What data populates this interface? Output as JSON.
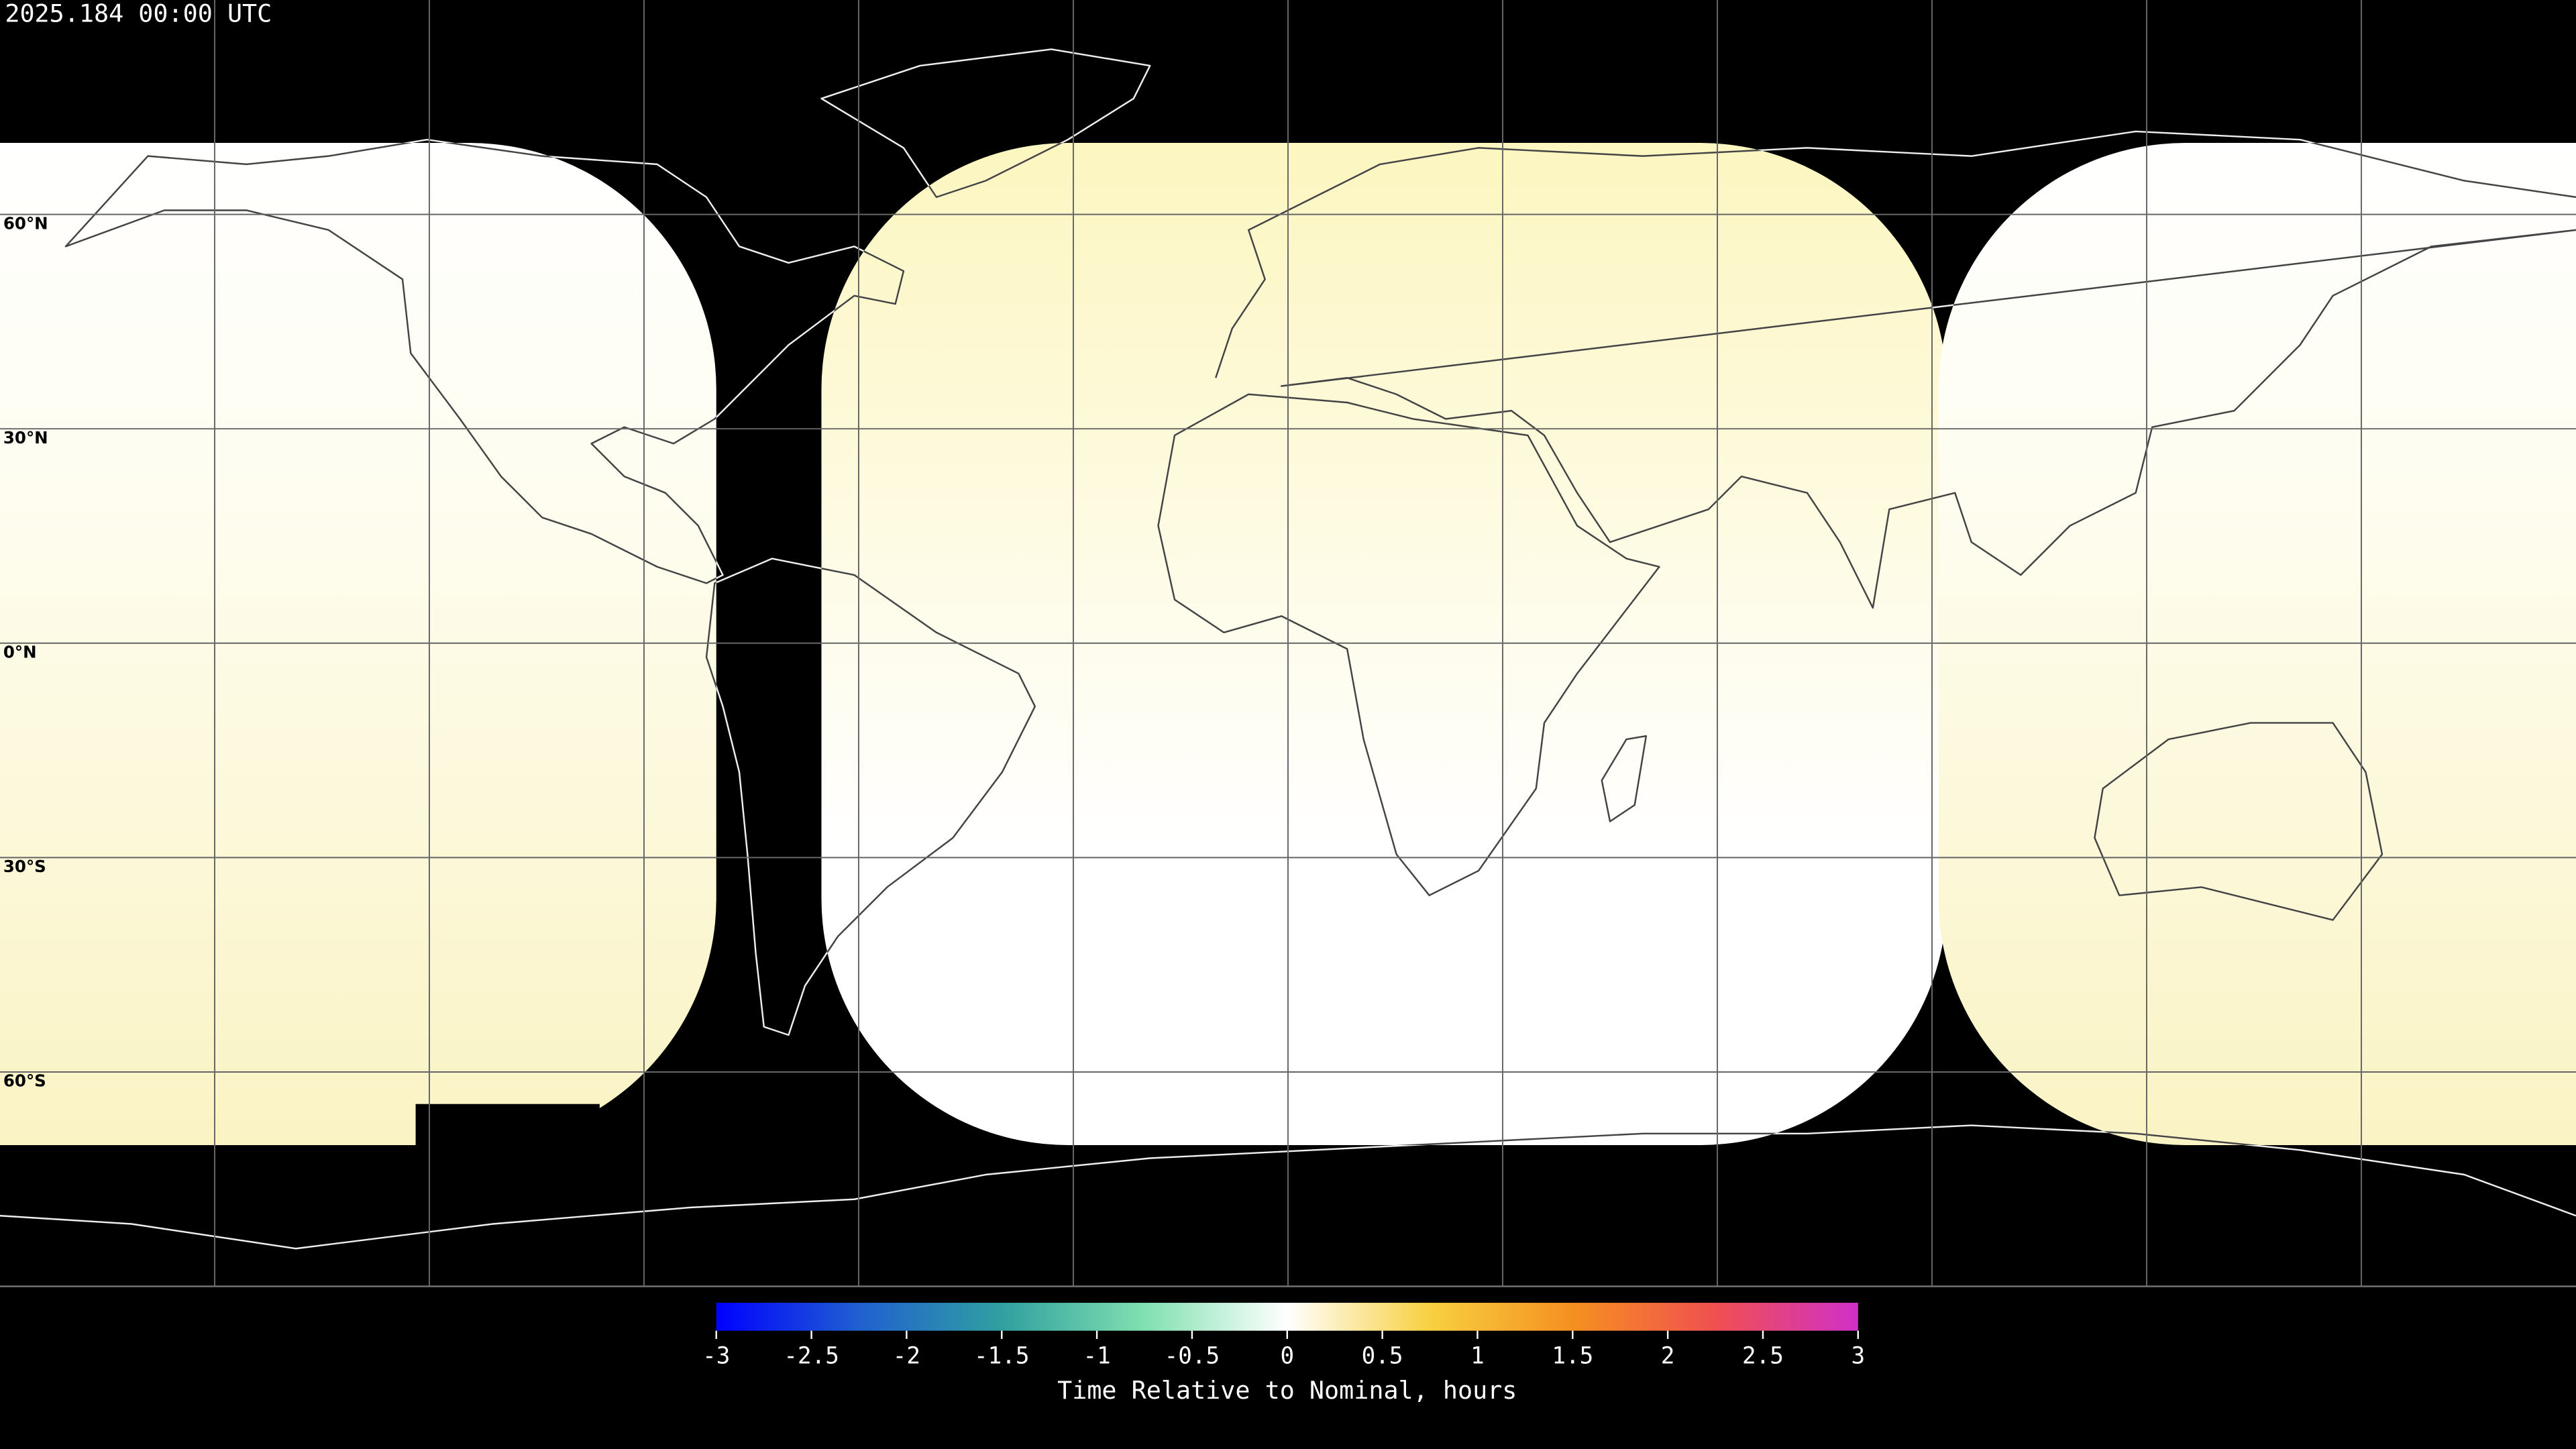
{
  "title": "2025.184 00:00 UTC",
  "latitude_labels": [
    "60°N",
    "30°N",
    "0°N",
    "30°S",
    "60°S"
  ],
  "colorbar": {
    "label": "Time Relative to Nominal, hours",
    "range": [
      -3,
      3
    ],
    "ticks": [
      -3,
      -2.5,
      -2,
      -1.5,
      -1,
      -0.5,
      0,
      0.5,
      1,
      1.5,
      2,
      2.5,
      3
    ],
    "colors": [
      "#0000ff",
      "#2060d0",
      "#30a0a0",
      "#80e0b0",
      "#ffffff",
      "#f8d040",
      "#f59020",
      "#f05050",
      "#d030c8"
    ]
  }
}
